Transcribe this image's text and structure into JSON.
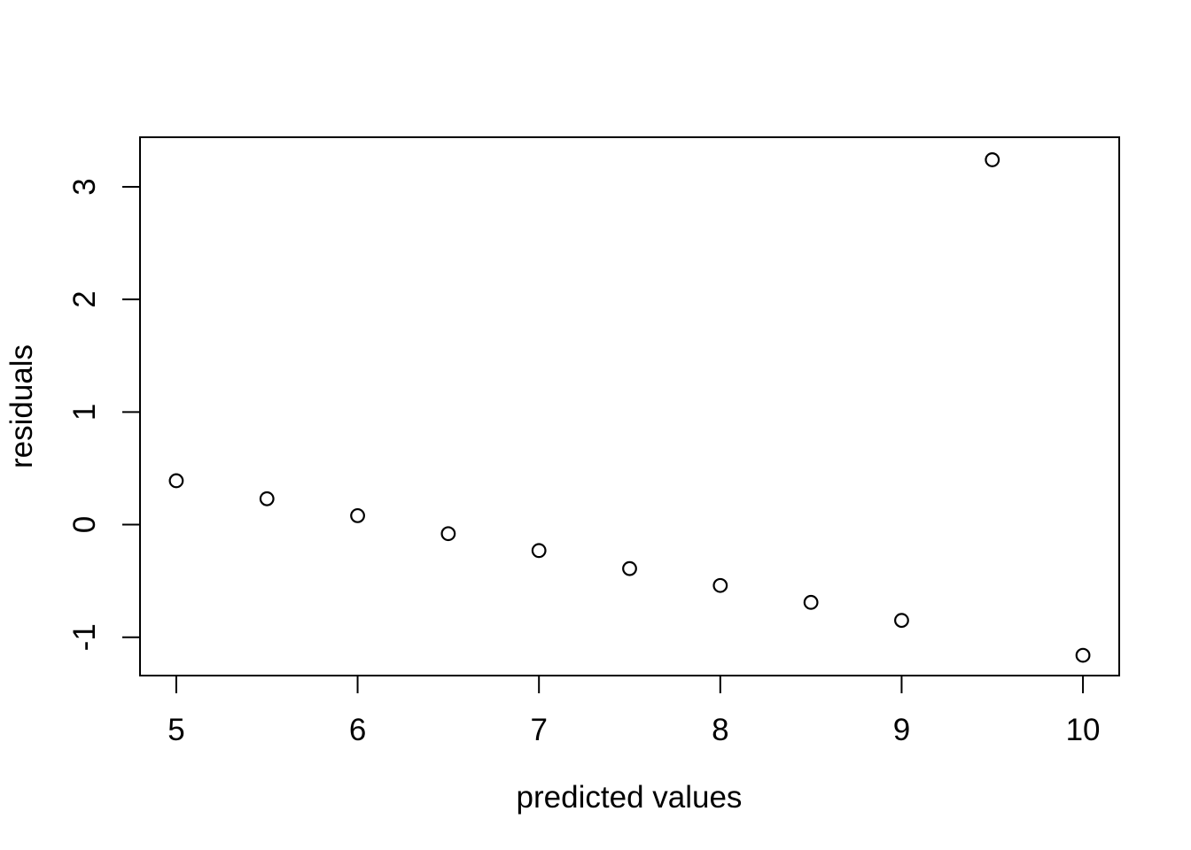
{
  "chart_data": {
    "type": "scatter",
    "title": "",
    "xlabel": "predicted values",
    "ylabel": "residuals",
    "x": [
      5.0,
      5.5,
      6.0,
      6.5,
      7.0,
      7.5,
      8.0,
      8.5,
      9.0,
      9.5,
      10.0
    ],
    "y": [
      0.39,
      0.23,
      0.08,
      -0.08,
      -0.23,
      -0.39,
      -0.54,
      -0.69,
      -0.85,
      3.24,
      -1.16
    ],
    "x_ticks": [
      "5",
      "6",
      "7",
      "8",
      "9",
      "10"
    ],
    "x_tick_values": [
      5,
      6,
      7,
      8,
      9,
      10
    ],
    "y_ticks": [
      "-1",
      "0",
      "1",
      "2",
      "3"
    ],
    "y_tick_values": [
      -1,
      0,
      1,
      2,
      3
    ],
    "xlim": [
      4.8,
      10.2
    ],
    "ylim": [
      -1.34,
      3.44
    ],
    "grid": false,
    "legend": "none",
    "marker": "open-circle",
    "point_color": "#000000",
    "axis_color": "#000000",
    "background_color": "#ffffff"
  }
}
